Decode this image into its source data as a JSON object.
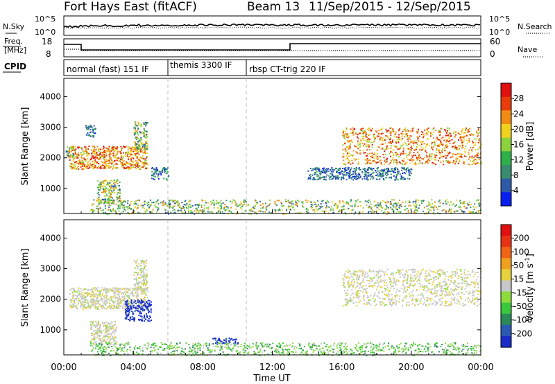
{
  "header": {
    "title": "Fort Hays East (fitACF)",
    "beam": "Beam 13",
    "daterange": "11/Sep/2015 - 12/Sep/2015"
  },
  "noise_panel": {
    "left_label": "N.Sky",
    "right_label": "N.Search",
    "left_ticks": [
      "10^5",
      "10^0"
    ],
    "right_ticks": [
      "10^5",
      "10^0"
    ]
  },
  "freq_panel": {
    "left_label_1": "Freq.",
    "left_label_2": "[MHz]",
    "right_label": "Nave",
    "left_ticks": [
      "18",
      "8"
    ],
    "right_ticks": [
      "60",
      "0"
    ]
  },
  "cpid_panel": {
    "label": "CPID",
    "segments": [
      {
        "label": "normal (fast) 151 IF",
        "start_hour": 0
      },
      {
        "label": "themis 3300 IF",
        "start_hour": 6
      },
      {
        "label": "rbsp CT-trig 220 IF",
        "start_hour": 10.5
      }
    ]
  },
  "colors": {
    "power_scale": [
      "#0a1ef0",
      "#2f5aa8",
      "#3a8c70",
      "#2db04a",
      "#8cd23c",
      "#f0d21e",
      "#f08c14",
      "#e83c0a",
      "#e01010"
    ],
    "velocity_scale": [
      "#1a2dc8",
      "#2d5ab4",
      "#2a8a5a",
      "#3cc83c",
      "#8cdc3c",
      "#c8c8c8",
      "#e6d23c",
      "#f0a01e",
      "#f06414",
      "#e83214",
      "#e01010"
    ]
  },
  "chart_data": [
    {
      "type": "heatmap",
      "panel": "power",
      "xlabel": "",
      "ylabel": "Slant Range [km]",
      "colorbar_label": "Power [dB]",
      "colorbar_ticks": [
        "28",
        "24",
        "20",
        "16",
        "12",
        "8",
        "4"
      ],
      "xlim": [
        0,
        24
      ],
      "ylim": [
        180,
        4600
      ],
      "yticks": [
        1000,
        2000,
        3000,
        4000
      ],
      "regions": [
        {
          "t_start": 0.3,
          "t_end": 4.8,
          "r_low": 1650,
          "r_high": 2400,
          "level": "high"
        },
        {
          "t_start": 0.1,
          "t_end": 0.6,
          "r_low": 2000,
          "r_high": 2400,
          "level": "medium"
        },
        {
          "t_start": 1.2,
          "t_end": 1.8,
          "r_low": 2700,
          "r_high": 3100,
          "level": "low"
        },
        {
          "t_start": 4.0,
          "t_end": 4.8,
          "r_low": 2300,
          "r_high": 3200,
          "level": "medium"
        },
        {
          "t_start": 1.9,
          "t_end": 3.2,
          "r_low": 500,
          "r_high": 1300,
          "level": "medium"
        },
        {
          "t_start": 5.0,
          "t_end": 6.0,
          "r_low": 1300,
          "r_high": 1700,
          "level": "low"
        },
        {
          "t_start": 1.5,
          "t_end": 24.0,
          "r_low": 180,
          "r_high": 650,
          "level": "medium"
        },
        {
          "t_start": 14.0,
          "t_end": 20.0,
          "r_low": 1300,
          "r_high": 1700,
          "level": "low"
        },
        {
          "t_start": 16.0,
          "t_end": 24.0,
          "r_low": 1800,
          "r_high": 3000,
          "level": "high"
        }
      ]
    },
    {
      "type": "heatmap",
      "panel": "velocity",
      "xlabel": "Time UT",
      "ylabel": "Slant Range [km]",
      "colorbar_label": "Velocity [m s-1]",
      "colorbar_ticks": [
        "200",
        "100",
        "50",
        "15",
        "-15",
        "-50",
        "-100",
        "-200"
      ],
      "xlim": [
        0,
        24
      ],
      "ylim": [
        180,
        4600
      ],
      "yticks": [
        1000,
        2000,
        3000,
        4000
      ],
      "xticks": [
        "00:00",
        "04:00",
        "08:00",
        "12:00",
        "16:00",
        "20:00",
        "00:00"
      ],
      "regions": [
        {
          "t_start": 0.3,
          "t_end": 4.8,
          "r_low": 1700,
          "r_high": 2400,
          "level": "near-zero"
        },
        {
          "t_start": 4.0,
          "t_end": 4.8,
          "r_low": 2300,
          "r_high": 3300,
          "level": "near-zero"
        },
        {
          "t_start": 1.5,
          "t_end": 3.0,
          "r_low": 500,
          "r_high": 1300,
          "level": "near-zero"
        },
        {
          "t_start": 3.5,
          "t_end": 5.0,
          "r_low": 1300,
          "r_high": 2000,
          "level": "positive-high"
        },
        {
          "t_start": 8.5,
          "t_end": 10.0,
          "r_low": 550,
          "r_high": 750,
          "level": "positive-high"
        },
        {
          "t_start": 1.5,
          "t_end": 24.0,
          "r_low": 180,
          "r_high": 600,
          "level": "positive-low"
        },
        {
          "t_start": 16.0,
          "t_end": 24.0,
          "r_low": 1800,
          "r_high": 3000,
          "level": "near-zero"
        }
      ]
    }
  ]
}
